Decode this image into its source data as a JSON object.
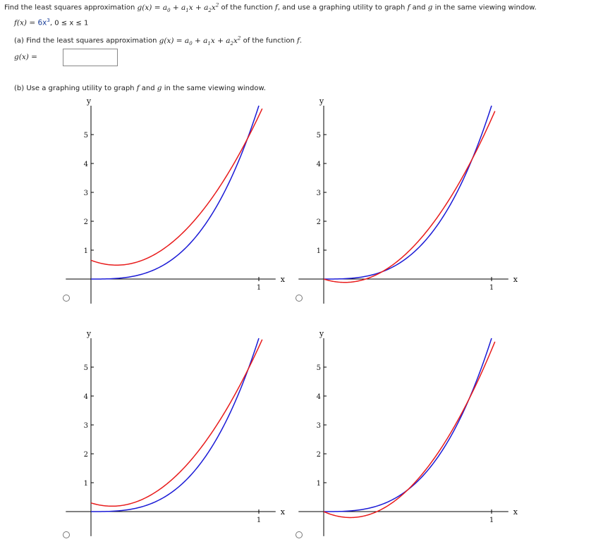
{
  "problem": {
    "prompt_prefix": "Find the least squares approximation",
    "prompt_suffix": "of the function",
    "prompt_tail": ", and use a graphing utility to graph",
    "prompt_and": "and",
    "prompt_end": "in the same viewing window.",
    "fx_label": "f(x) = ",
    "fx_expr": "6x",
    "fx_domain": ",  0 ≤ x ≤ 1",
    "g_expr_gx": "g(x) = a",
    "g_expr_1": " + a",
    "g_expr_2": "x + a",
    "g_expr_3": "x",
    "f_name": "f",
    "g_name": "g"
  },
  "part_a": {
    "label": "(a) Find the least squares approximation",
    "suffix": "of the function",
    "answer_label": "g(x) =",
    "answer_value": ""
  },
  "part_b": {
    "label": "(b) Use a graphing utility to graph",
    "and": "and",
    "end": "in the same viewing window."
  },
  "options": [
    {
      "id": "option-1",
      "selected": false
    },
    {
      "id": "option-2",
      "selected": false
    },
    {
      "id": "option-3",
      "selected": false
    },
    {
      "id": "option-4",
      "selected": false
    }
  ],
  "colors": {
    "f_curve": "#e81b1b",
    "g_curve": "#1a1ad6",
    "axis": "#000000"
  },
  "chart_data": [
    {
      "type": "line",
      "xlabel": "x",
      "ylabel": "y",
      "xticks": [
        "1"
      ],
      "yticks": [
        "1",
        "2",
        "3",
        "4",
        "5"
      ],
      "xlim": [
        -0.15,
        1.15
      ],
      "ylim": [
        -0.3,
        6.9
      ],
      "series": [
        {
          "color": "#1a1ad6",
          "coeffs": [
            0,
            0,
            0,
            6
          ]
        },
        {
          "color": "#e81b1b",
          "coeffs": [
            0.65,
            -2.2,
            7.2,
            0
          ]
        }
      ]
    },
    {
      "type": "line",
      "xlabel": "x",
      "ylabel": "y",
      "xticks": [
        "1"
      ],
      "yticks": [
        "1",
        "2",
        "3",
        "4",
        "5"
      ],
      "xlim": [
        -0.15,
        1.15
      ],
      "ylim": [
        -0.3,
        6.9
      ],
      "series": [
        {
          "color": "#1a1ad6",
          "coeffs": [
            0,
            0,
            0,
            6
          ]
        },
        {
          "color": "#e81b1b",
          "coeffs": [
            0,
            -1.85,
            7.4,
            0
          ]
        }
      ]
    },
    {
      "type": "line",
      "xlabel": "x",
      "ylabel": "y",
      "xticks": [
        "1"
      ],
      "yticks": [
        "1",
        "2",
        "3",
        "4",
        "5"
      ],
      "xlim": [
        -0.15,
        1.15
      ],
      "ylim": [
        -0.3,
        6.9
      ],
      "series": [
        {
          "color": "#1a1ad6",
          "coeffs": [
            0,
            0,
            0,
            6
          ]
        },
        {
          "color": "#e81b1b",
          "coeffs": [
            0.3,
            -1.8,
            7.2,
            0
          ]
        }
      ]
    },
    {
      "type": "line",
      "xlabel": "x",
      "ylabel": "y",
      "xticks": [
        "1"
      ],
      "yticks": [
        "1",
        "2",
        "3",
        "4",
        "5"
      ],
      "xlim": [
        -0.15,
        1.15
      ],
      "ylim": [
        -0.3,
        6.9
      ],
      "series": [
        {
          "color": "#1a1ad6",
          "coeffs": [
            0,
            0,
            0,
            6
          ]
        },
        {
          "color": "#e81b1b",
          "coeffs": [
            0,
            -2.6,
            8.2,
            0
          ]
        }
      ]
    }
  ]
}
